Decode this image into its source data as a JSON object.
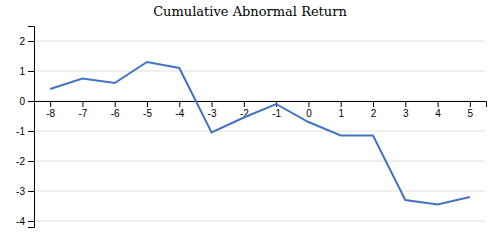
{
  "chart_data": {
    "type": "line",
    "title": "Cumulative Abnormal Return",
    "x": [
      -8,
      -7,
      -6,
      -5,
      -4,
      -3,
      -2,
      -1,
      0,
      1,
      2,
      3,
      4,
      5
    ],
    "values": [
      0.4,
      0.75,
      0.6,
      1.3,
      1.1,
      -1.05,
      -0.55,
      -0.1,
      -0.7,
      -1.15,
      -1.15,
      -3.3,
      -3.45,
      -3.2
    ],
    "color": "#4472C4",
    "xlim": [
      -8.5,
      5.5
    ],
    "xticks": [
      -8,
      -7,
      -6,
      -5,
      -4,
      -3,
      -2,
      -1,
      0,
      1,
      2,
      3,
      4,
      5
    ],
    "ylim": [
      -4.2,
      2.5
    ],
    "yticks": [
      -4,
      -3,
      -2,
      -1,
      0,
      1,
      2
    ],
    "grid": true
  }
}
